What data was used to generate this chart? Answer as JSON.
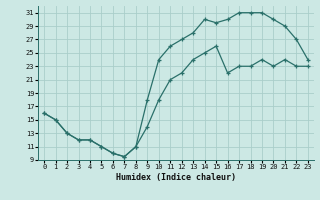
{
  "xlabel": "Humidex (Indice chaleur)",
  "bg_color": "#cce8e4",
  "line_color": "#2a706a",
  "grid_color": "#aaceca",
  "xlim": [
    -0.5,
    23.5
  ],
  "ylim": [
    9,
    32
  ],
  "xticks": [
    0,
    1,
    2,
    3,
    4,
    5,
    6,
    7,
    8,
    9,
    10,
    11,
    12,
    13,
    14,
    15,
    16,
    17,
    18,
    19,
    20,
    21,
    22,
    23
  ],
  "yticks": [
    9,
    11,
    13,
    15,
    17,
    19,
    21,
    23,
    25,
    27,
    29,
    31
  ],
  "line1_x": [
    0,
    1,
    2,
    3,
    4,
    5,
    6,
    7,
    8,
    9,
    10,
    11,
    12,
    13,
    14,
    15,
    16,
    17,
    18,
    19,
    20,
    21,
    22,
    23
  ],
  "line1_y": [
    16,
    15,
    13,
    12,
    12,
    11,
    10,
    9.5,
    11,
    14,
    18,
    21,
    22,
    24,
    25,
    26,
    22,
    23,
    23,
    24,
    23,
    24,
    23,
    23
  ],
  "line2_x": [
    0,
    1,
    2,
    3,
    4,
    5,
    6,
    7,
    8,
    9,
    10,
    11,
    12,
    13,
    14,
    15,
    16,
    17,
    18,
    19,
    20,
    21,
    22,
    23
  ],
  "line2_y": [
    16,
    15,
    13,
    12,
    12,
    11,
    10,
    9.5,
    11,
    18,
    24,
    26,
    27,
    28,
    30,
    29.5,
    30,
    31,
    31,
    31,
    30,
    29,
    27,
    24
  ],
  "xlabel_fontsize": 6,
  "tick_fontsize": 5,
  "linewidth": 0.9,
  "markersize": 3
}
